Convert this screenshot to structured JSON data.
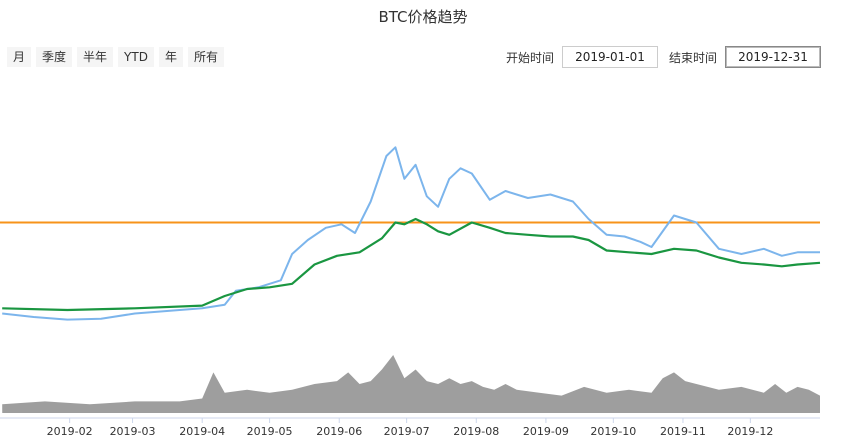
{
  "title": "BTC价格趋势",
  "range_buttons": [
    "月",
    "季度",
    "半年",
    "YTD",
    "年",
    "所有"
  ],
  "start": {
    "label": "开始时间",
    "value": "2019-01-01"
  },
  "end": {
    "label": "结束时间",
    "value": "2019-12-31"
  },
  "colors": {
    "price": "#7cb5ec",
    "ma": "#1a9641",
    "reference": "#f7931a",
    "volume": "#9e9e9e"
  },
  "chart_data": {
    "type": "line",
    "x_tick_labels": [
      "2019-02",
      "2019-03",
      "2019-04",
      "2019-05",
      "2019-06",
      "2019-07",
      "2019-08",
      "2019-09",
      "2019-10",
      "2019-11",
      "2019-12"
    ],
    "reference_line": 9000,
    "ylim": [
      2000,
      16000
    ],
    "series": [
      {
        "key": "price",
        "x": [
          1,
          15,
          30,
          45,
          60,
          75,
          90,
          100,
          105,
          115,
          125,
          130,
          137,
          145,
          152,
          158,
          165,
          172,
          176,
          180,
          185,
          190,
          195,
          200,
          205,
          210,
          218,
          225,
          235,
          245,
          255,
          262,
          270,
          278,
          285,
          290,
          300,
          305,
          310,
          320,
          330,
          340,
          348,
          355,
          365
        ],
        "values": [
          3800,
          3600,
          3450,
          3500,
          3800,
          3950,
          4100,
          4300,
          5100,
          5300,
          5700,
          7200,
          8000,
          8700,
          8900,
          8400,
          10200,
          12800,
          13300,
          11500,
          12300,
          10500,
          9900,
          11500,
          12100,
          11800,
          10300,
          10800,
          10400,
          10600,
          10200,
          9200,
          8300,
          8200,
          7900,
          7600,
          9400,
          9200,
          9000,
          7500,
          7200,
          7500,
          7100,
          7300,
          7300
        ]
      },
      {
        "key": "ma",
        "x": [
          1,
          30,
          60,
          90,
          100,
          110,
          120,
          130,
          140,
          150,
          160,
          170,
          176,
          180,
          185,
          190,
          195,
          200,
          210,
          218,
          225,
          235,
          245,
          255,
          262,
          270,
          280,
          290,
          300,
          310,
          320,
          330,
          340,
          348,
          355,
          365
        ],
        "values": [
          4100,
          4000,
          4100,
          4250,
          4800,
          5200,
          5300,
          5500,
          6600,
          7100,
          7300,
          8100,
          9000,
          8900,
          9200,
          8900,
          8500,
          8300,
          9000,
          8700,
          8400,
          8300,
          8200,
          8200,
          8000,
          7400,
          7300,
          7200,
          7500,
          7400,
          7000,
          6700,
          6600,
          6500,
          6600,
          6700
        ]
      },
      {
        "key": "volume",
        "x": [
          1,
          20,
          40,
          60,
          80,
          90,
          95,
          100,
          110,
          120,
          130,
          135,
          140,
          150,
          155,
          160,
          165,
          170,
          175,
          180,
          185,
          190,
          195,
          200,
          205,
          210,
          215,
          220,
          225,
          230,
          240,
          250,
          260,
          270,
          280,
          290,
          295,
          300,
          305,
          310,
          320,
          330,
          340,
          345,
          350,
          355,
          360,
          365
        ],
        "values": [
          0.15,
          0.2,
          0.15,
          0.2,
          0.2,
          0.25,
          0.7,
          0.35,
          0.4,
          0.35,
          0.4,
          0.45,
          0.5,
          0.55,
          0.7,
          0.5,
          0.55,
          0.75,
          1.0,
          0.6,
          0.75,
          0.55,
          0.5,
          0.6,
          0.5,
          0.55,
          0.45,
          0.4,
          0.5,
          0.4,
          0.35,
          0.3,
          0.45,
          0.35,
          0.4,
          0.35,
          0.6,
          0.7,
          0.55,
          0.5,
          0.4,
          0.45,
          0.35,
          0.5,
          0.35,
          0.45,
          0.4,
          0.3
        ]
      }
    ]
  }
}
